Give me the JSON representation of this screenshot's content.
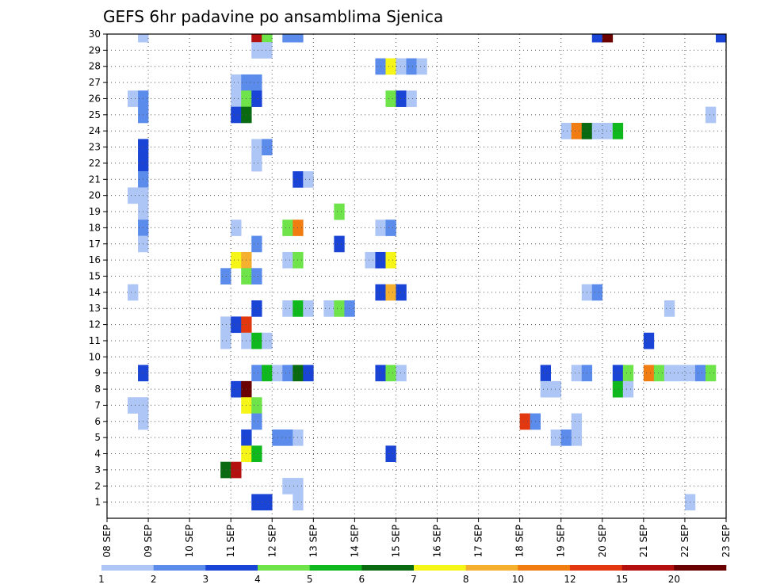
{
  "chart_data": {
    "type": "heatmap",
    "title": "GEFS 6hr padavine po ansamblima Sjenica",
    "x_tick_labels": [
      "08 SEP",
      "09 SEP",
      "10 SEP",
      "11 SEP",
      "12 SEP",
      "13 SEP",
      "14 SEP",
      "15 SEP",
      "16 SEP",
      "17 SEP",
      "18 SEP",
      "19 SEP",
      "20 SEP",
      "21 SEP",
      "22 SEP",
      "23 SEP"
    ],
    "y_tick_labels": [
      "1",
      "2",
      "3",
      "4",
      "5",
      "6",
      "7",
      "8",
      "9",
      "10",
      "11",
      "12",
      "13",
      "14",
      "15",
      "16",
      "17",
      "18",
      "19",
      "20",
      "21",
      "22",
      "23",
      "24",
      "25",
      "26",
      "27",
      "28",
      "29",
      "30"
    ],
    "x_range_steps": [
      0,
      60
    ],
    "y_range": [
      0,
      30
    ],
    "steps_per_day": 4,
    "grid": true,
    "legend_position": "bottom",
    "color_scale": {
      "labels": [
        "1",
        "2",
        "3",
        "4",
        "5",
        "6",
        "7",
        "8",
        "10",
        "12",
        "15",
        "20"
      ],
      "colors": [
        "#aec6f5",
        "#5b8ceb",
        "#1a44d6",
        "#6fe34a",
        "#0fb81c",
        "#0a6a12",
        "#f5f518",
        "#f5b030",
        "#f07c12",
        "#e3380f",
        "#b41010",
        "#6b0000"
      ]
    },
    "cells": [
      [
        30,
        3,
        1
      ],
      [
        30,
        14,
        11
      ],
      [
        30,
        15,
        4
      ],
      [
        30,
        17,
        2
      ],
      [
        30,
        18,
        2
      ],
      [
        30,
        47,
        3
      ],
      [
        30,
        48,
        12
      ],
      [
        30,
        59,
        3
      ],
      [
        29,
        14,
        1
      ],
      [
        29,
        15,
        1
      ],
      [
        28,
        26,
        2
      ],
      [
        28,
        27,
        7
      ],
      [
        28,
        28,
        1
      ],
      [
        28,
        29,
        2
      ],
      [
        28,
        30,
        1
      ],
      [
        27,
        12,
        1
      ],
      [
        27,
        13,
        2
      ],
      [
        27,
        14,
        2
      ],
      [
        26,
        2,
        1
      ],
      [
        26,
        3,
        2
      ],
      [
        26,
        12,
        1
      ],
      [
        26,
        13,
        4
      ],
      [
        26,
        14,
        3
      ],
      [
        26,
        27,
        4
      ],
      [
        26,
        28,
        3
      ],
      [
        26,
        29,
        1
      ],
      [
        25,
        3,
        2
      ],
      [
        25,
        12,
        3
      ],
      [
        25,
        13,
        6
      ],
      [
        25,
        58,
        1
      ],
      [
        24,
        44,
        1
      ],
      [
        24,
        45,
        9
      ],
      [
        24,
        46,
        6
      ],
      [
        24,
        47,
        1
      ],
      [
        24,
        48,
        1
      ],
      [
        24,
        49,
        5
      ],
      [
        23,
        3,
        3
      ],
      [
        23,
        14,
        1
      ],
      [
        23,
        15,
        2
      ],
      [
        22,
        3,
        3
      ],
      [
        22,
        14,
        1
      ],
      [
        21,
        3,
        2
      ],
      [
        21,
        18,
        3
      ],
      [
        21,
        19,
        1
      ],
      [
        20,
        2,
        1
      ],
      [
        20,
        3,
        1
      ],
      [
        19,
        3,
        1
      ],
      [
        19,
        22,
        4
      ],
      [
        18,
        3,
        2
      ],
      [
        18,
        12,
        1
      ],
      [
        18,
        17,
        4
      ],
      [
        18,
        18,
        9
      ],
      [
        18,
        26,
        1
      ],
      [
        18,
        27,
        2
      ],
      [
        17,
        3,
        1
      ],
      [
        17,
        14,
        2
      ],
      [
        17,
        22,
        3
      ],
      [
        16,
        12,
        7
      ],
      [
        16,
        13,
        8
      ],
      [
        16,
        17,
        1
      ],
      [
        16,
        18,
        4
      ],
      [
        16,
        25,
        1
      ],
      [
        16,
        26,
        3
      ],
      [
        16,
        27,
        7
      ],
      [
        15,
        11,
        2
      ],
      [
        15,
        13,
        4
      ],
      [
        15,
        14,
        2
      ],
      [
        14,
        2,
        1
      ],
      [
        14,
        26,
        3
      ],
      [
        14,
        27,
        8
      ],
      [
        14,
        28,
        3
      ],
      [
        14,
        46,
        1
      ],
      [
        14,
        47,
        2
      ],
      [
        13,
        14,
        3
      ],
      [
        13,
        17,
        1
      ],
      [
        13,
        18,
        5
      ],
      [
        13,
        19,
        1
      ],
      [
        13,
        21,
        1
      ],
      [
        13,
        22,
        4
      ],
      [
        13,
        23,
        2
      ],
      [
        13,
        54,
        1
      ],
      [
        12,
        11,
        1
      ],
      [
        12,
        12,
        3
      ],
      [
        12,
        13,
        10
      ],
      [
        11,
        11,
        1
      ],
      [
        11,
        13,
        1
      ],
      [
        11,
        14,
        5
      ],
      [
        11,
        15,
        1
      ],
      [
        11,
        52,
        3
      ],
      [
        9,
        3,
        3
      ],
      [
        9,
        14,
        2
      ],
      [
        9,
        15,
        5
      ],
      [
        9,
        16,
        1
      ],
      [
        9,
        17,
        2
      ],
      [
        9,
        18,
        6
      ],
      [
        9,
        19,
        3
      ],
      [
        9,
        26,
        3
      ],
      [
        9,
        27,
        4
      ],
      [
        9,
        28,
        1
      ],
      [
        9,
        42,
        3
      ],
      [
        9,
        45,
        1
      ],
      [
        9,
        46,
        2
      ],
      [
        9,
        49,
        3
      ],
      [
        9,
        50,
        4
      ],
      [
        9,
        52,
        9
      ],
      [
        9,
        53,
        4
      ],
      [
        9,
        54,
        1
      ],
      [
        9,
        55,
        1
      ],
      [
        9,
        56,
        1
      ],
      [
        9,
        57,
        2
      ],
      [
        9,
        58,
        4
      ],
      [
        8,
        12,
        3
      ],
      [
        8,
        13,
        12
      ],
      [
        8,
        42,
        1
      ],
      [
        8,
        43,
        1
      ],
      [
        8,
        49,
        5
      ],
      [
        8,
        50,
        1
      ],
      [
        7,
        2,
        1
      ],
      [
        7,
        3,
        1
      ],
      [
        7,
        13,
        7
      ],
      [
        7,
        14,
        4
      ],
      [
        6,
        3,
        1
      ],
      [
        6,
        14,
        2
      ],
      [
        6,
        40,
        10
      ],
      [
        6,
        41,
        2
      ],
      [
        6,
        45,
        1
      ],
      [
        5,
        13,
        3
      ],
      [
        5,
        16,
        2
      ],
      [
        5,
        17,
        2
      ],
      [
        5,
        18,
        1
      ],
      [
        5,
        43,
        1
      ],
      [
        5,
        44,
        2
      ],
      [
        5,
        45,
        1
      ],
      [
        4,
        13,
        7
      ],
      [
        4,
        14,
        5
      ],
      [
        4,
        27,
        3
      ],
      [
        3,
        11,
        6
      ],
      [
        3,
        12,
        11
      ],
      [
        2,
        17,
        1
      ],
      [
        2,
        18,
        1
      ],
      [
        1,
        14,
        3
      ],
      [
        1,
        15,
        3
      ],
      [
        1,
        18,
        1
      ],
      [
        1,
        56,
        1
      ]
    ]
  }
}
